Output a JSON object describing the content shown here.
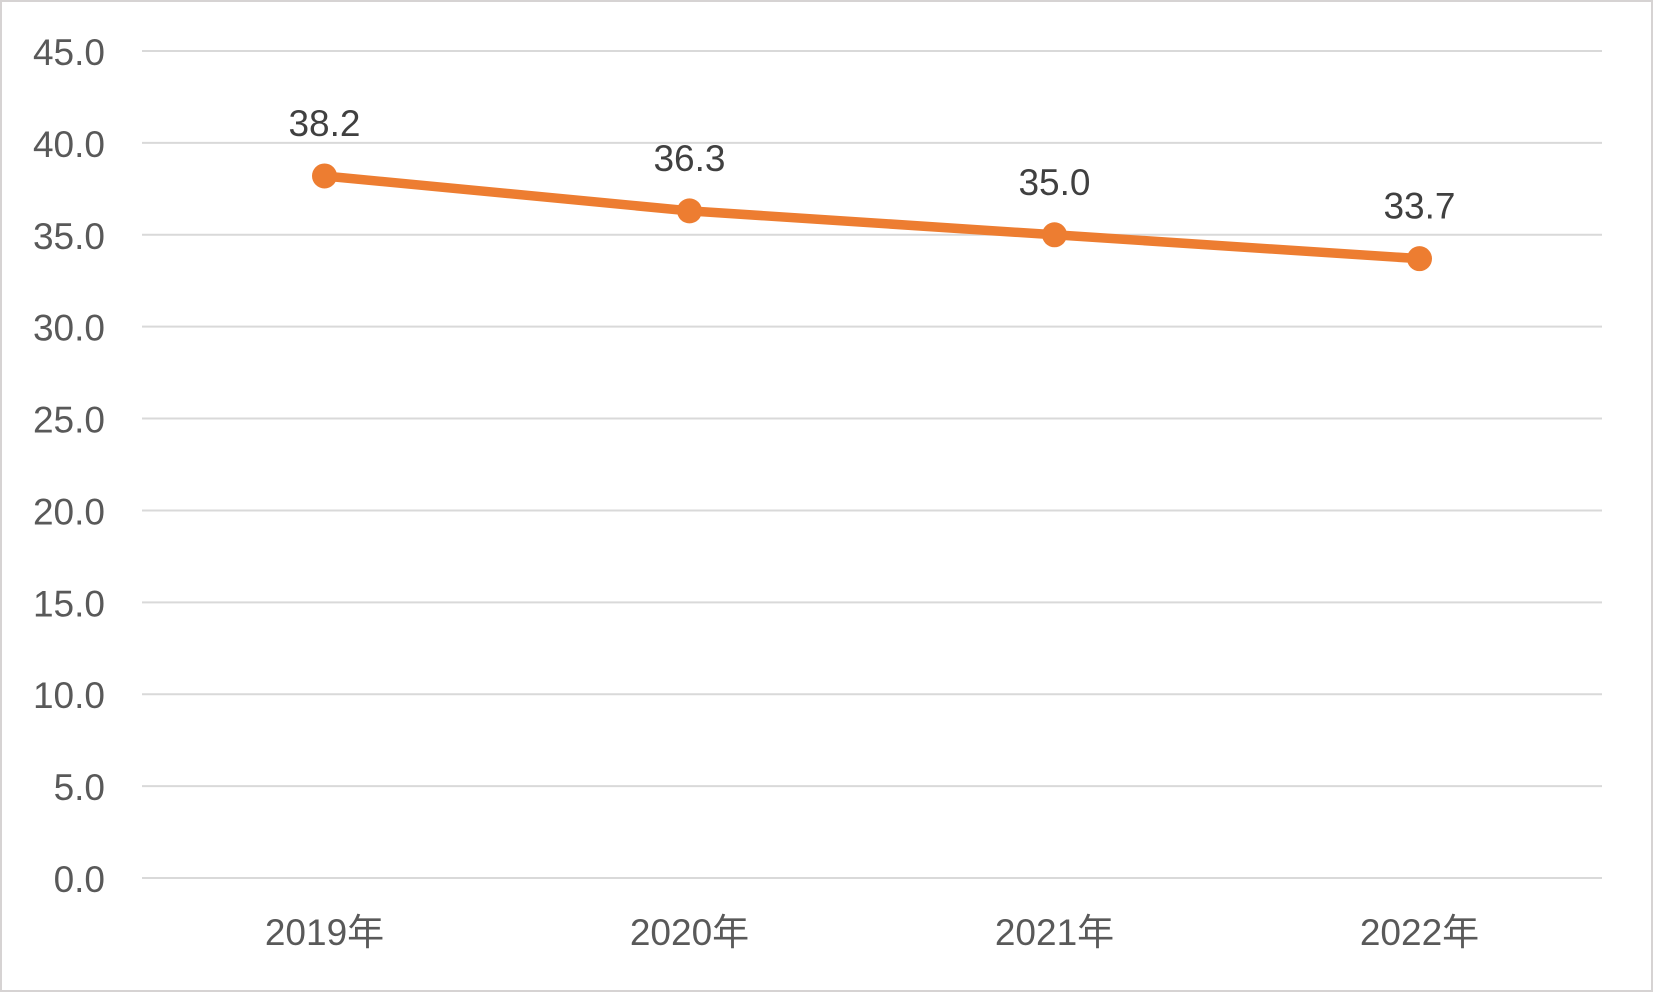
{
  "chart": {
    "background_color": "#ffffff",
    "frame_border_color": "#d6d3d3"
  },
  "chart_data": {
    "type": "line",
    "title": "",
    "xlabel": "",
    "ylabel": "",
    "categories": [
      "2019年",
      "2020年",
      "2021年",
      "2022年"
    ],
    "series": [
      {
        "name": "series-1",
        "values": [
          38.2,
          36.3,
          35.0,
          33.7
        ],
        "data_labels": [
          "38.2",
          "36.3",
          "35.0",
          "33.7"
        ],
        "color": "#ED7D31",
        "marker": "circle"
      }
    ],
    "ylim": [
      0,
      45
    ],
    "y_tick_step": 5,
    "y_tick_labels": [
      "0.0",
      "5.0",
      "10.0",
      "15.0",
      "20.0",
      "25.0",
      "30.0",
      "35.0",
      "40.0",
      "45.0"
    ],
    "grid": "horizontal",
    "gridline_color": "#d9d9d9",
    "axis_tick_color": "#595959",
    "data_label_color": "#404040",
    "legend": "none"
  }
}
